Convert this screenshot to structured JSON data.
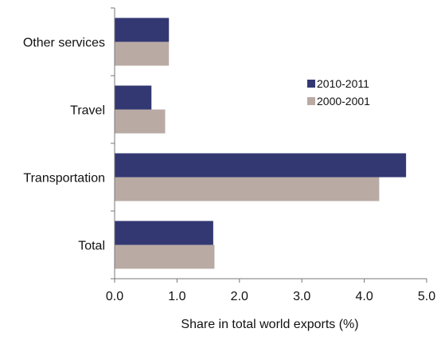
{
  "chart_data": {
    "type": "bar",
    "orientation": "horizontal",
    "categories": [
      "Other services",
      "Travel",
      "Transportation",
      "Total"
    ],
    "series": [
      {
        "name": "2010-2011",
        "color": "#333873",
        "values": [
          0.87,
          0.59,
          4.67,
          1.58
        ]
      },
      {
        "name": "2000-2001",
        "color": "#b9aba4",
        "values": [
          0.87,
          0.81,
          4.24,
          1.6
        ]
      }
    ],
    "xlabel": "Share in total world exports (%)",
    "ylabel": "",
    "xlim": [
      0,
      5.0
    ],
    "x_ticks": [
      "0.0",
      "1.0",
      "2.0",
      "3.0",
      "4.0",
      "5.0"
    ],
    "grid": false,
    "legend_position": "right"
  }
}
